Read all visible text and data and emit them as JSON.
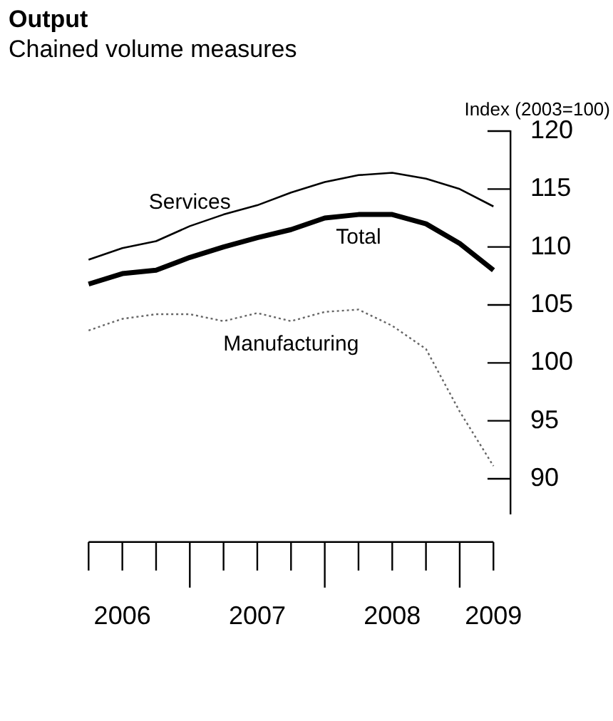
{
  "chart_data": {
    "type": "line",
    "title": "Output",
    "subtitle": "Chained volume measures",
    "ylabel": "Index (2003=100)",
    "categories": [
      null,
      "2006",
      null,
      null,
      null,
      "2007",
      null,
      null,
      null,
      "2008",
      null,
      null,
      "2009"
    ],
    "series": [
      {
        "name": "Services",
        "color": "#000000",
        "line_style": "solid",
        "values": [
          108.9,
          109.9,
          110.5,
          111.8,
          112.8,
          113.6,
          114.7,
          115.6,
          116.2,
          116.4,
          115.9,
          115.0,
          113.5
        ]
      },
      {
        "name": "Total",
        "color": "#000000",
        "line_style": "solid",
        "values": [
          106.8,
          107.7,
          108.0,
          109.1,
          110.0,
          110.8,
          111.5,
          112.5,
          112.8,
          112.8,
          112.0,
          110.3,
          108.0
        ]
      },
      {
        "name": "Manufacturing",
        "color": "#666666",
        "line_style": "dotted",
        "values": [
          102.8,
          103.8,
          104.2,
          104.2,
          103.6,
          104.3,
          103.6,
          104.4,
          104.6,
          103.2,
          101.2,
          95.8,
          91.1
        ]
      }
    ],
    "ylim": [
      87,
      120
    ],
    "yticks": [
      90,
      95,
      100,
      105,
      110,
      115,
      120
    ],
    "grid": false,
    "legend": false,
    "marker": "none"
  }
}
